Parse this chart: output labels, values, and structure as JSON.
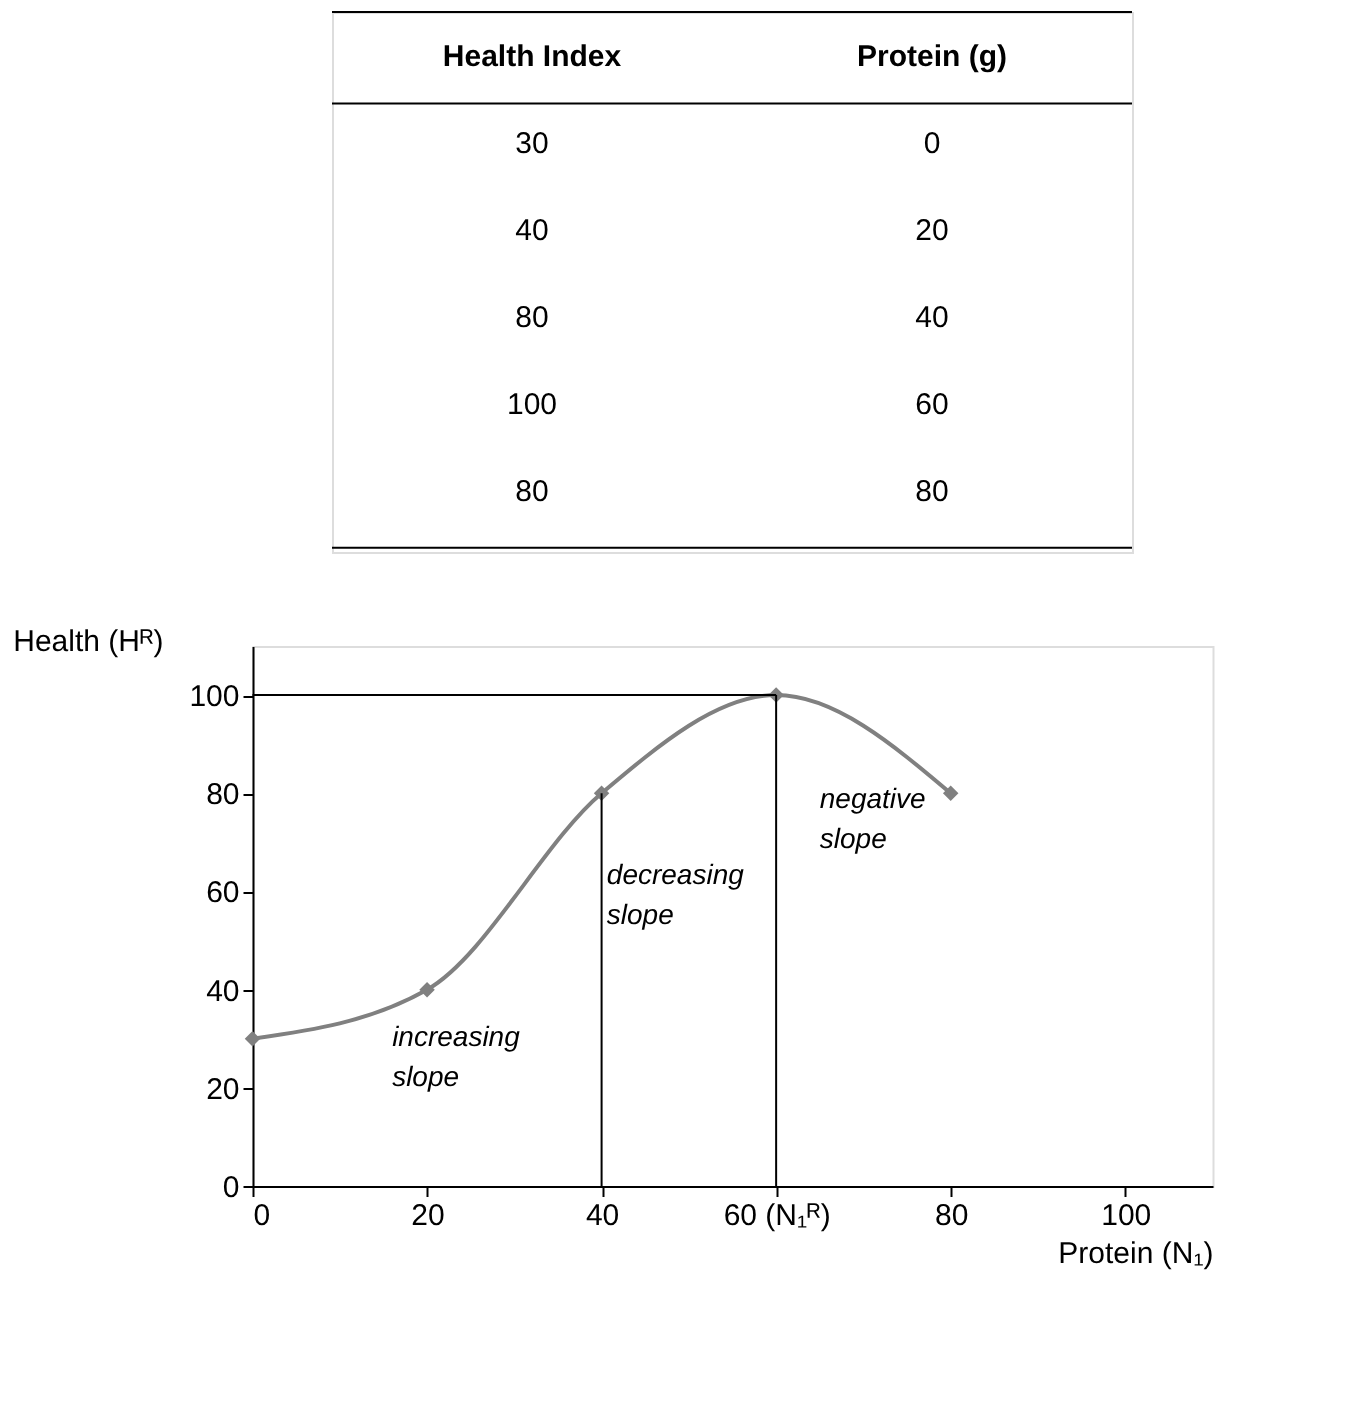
{
  "chart_data": {
    "type": "line",
    "x": [
      0,
      20,
      40,
      60,
      80
    ],
    "series": [
      {
        "color": "#808080",
        "values": [
          30,
          40,
          80,
          100,
          80
        ]
      }
    ],
    "xlabel": "Protein (N₁)",
    "ylabel": "Health (Hᴿ)",
    "xlim": [
      0,
      110
    ],
    "ylim": [
      0,
      110
    ],
    "xticks": [
      0,
      20,
      40,
      {
        "value": 60,
        "label": "60 (N₁ᴿ)"
      },
      80,
      100
    ],
    "yticks": [
      0,
      20,
      40,
      60,
      80,
      100
    ],
    "marker": "diamond",
    "grid": false,
    "legend": false,
    "ref_lines": [
      {
        "axis": "x",
        "value": 40,
        "color": "#000000"
      },
      {
        "axis": "x",
        "value": 60,
        "color": "#000000"
      },
      {
        "axis": "y",
        "value": 100,
        "color": "#000000"
      }
    ],
    "annotations": [
      "Health Index",
      "Protein (g)",
      "30",
      "0",
      "40",
      "20",
      "80",
      "40",
      "100",
      "60",
      "80",
      "80",
      "increasing slope",
      "decreasing slope",
      "negative slope"
    ]
  }
}
